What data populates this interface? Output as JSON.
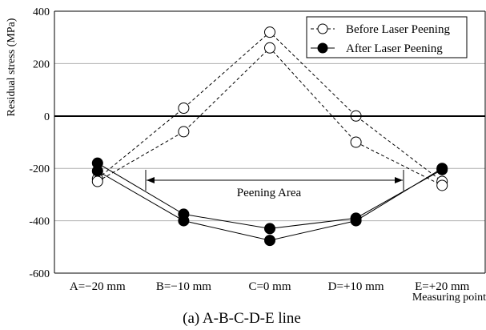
{
  "chart_data": {
    "type": "line",
    "caption": "(a) A-B-C-D-E line",
    "ylabel": "Residual stress (MPa)",
    "xlabel": "Measuring point",
    "categories": [
      "A=−20 mm",
      "B=−10 mm",
      "C=0 mm",
      "D=+10 mm",
      "E=+20 mm"
    ],
    "ylim": [
      -600,
      400
    ],
    "yticks": [
      400,
      200,
      0,
      -200,
      -400,
      -600
    ],
    "ytick_labels": [
      "400",
      "200",
      "0",
      "-200",
      "-400",
      "-600"
    ],
    "grid": true,
    "legend_position": "top-right",
    "annotation": "Peening Area",
    "series": [
      {
        "name": "Before Laser Peening",
        "marker": "open-circle",
        "line": "dashed",
        "values": [
          -240,
          30,
          320,
          0,
          -250
        ]
      },
      {
        "name": "",
        "marker": "open-circle",
        "line": "dashed",
        "values": [
          -250,
          -60,
          260,
          -100,
          -265
        ]
      },
      {
        "name": "After Laser Peening",
        "marker": "filled-circle",
        "line": "solid",
        "values": [
          -180,
          -375,
          -430,
          -390,
          -205
        ]
      },
      {
        "name": "",
        "marker": "filled-circle",
        "line": "solid",
        "values": [
          -210,
          -400,
          -475,
          -400,
          -200
        ]
      }
    ],
    "colors": {
      "axis": "#000000",
      "grid": "#b0b0b0"
    }
  }
}
